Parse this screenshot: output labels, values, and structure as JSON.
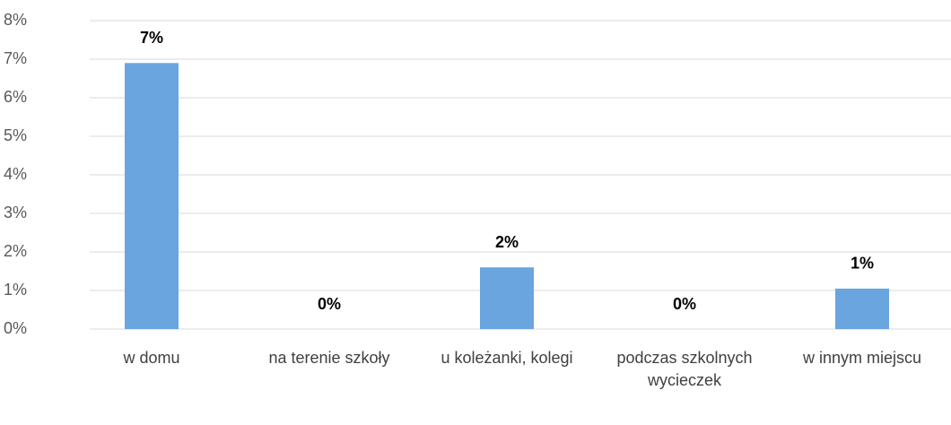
{
  "chart_data": {
    "type": "bar",
    "categories": [
      "w domu",
      "na terenie szkoły",
      "u koleżanki, kolegi",
      "podczas szkolnych wycieczek",
      "w innym miejscu"
    ],
    "values": [
      6.9,
      0,
      1.6,
      0,
      1.05
    ],
    "value_labels": [
      "7%",
      "0%",
      "2%",
      "0%",
      "1%"
    ],
    "color": "#6aa5e0",
    "ylim": [
      0,
      8
    ],
    "yticks": [
      {
        "value": 0,
        "label": "0%"
      },
      {
        "value": 1,
        "label": "1%"
      },
      {
        "value": 2,
        "label": "2%"
      },
      {
        "value": 3,
        "label": "3%"
      },
      {
        "value": 4,
        "label": "4%"
      },
      {
        "value": 5,
        "label": "5%"
      },
      {
        "value": 6,
        "label": "6%"
      },
      {
        "value": 7,
        "label": "7%"
      },
      {
        "value": 8,
        "label": "8%"
      }
    ],
    "grid": true
  }
}
